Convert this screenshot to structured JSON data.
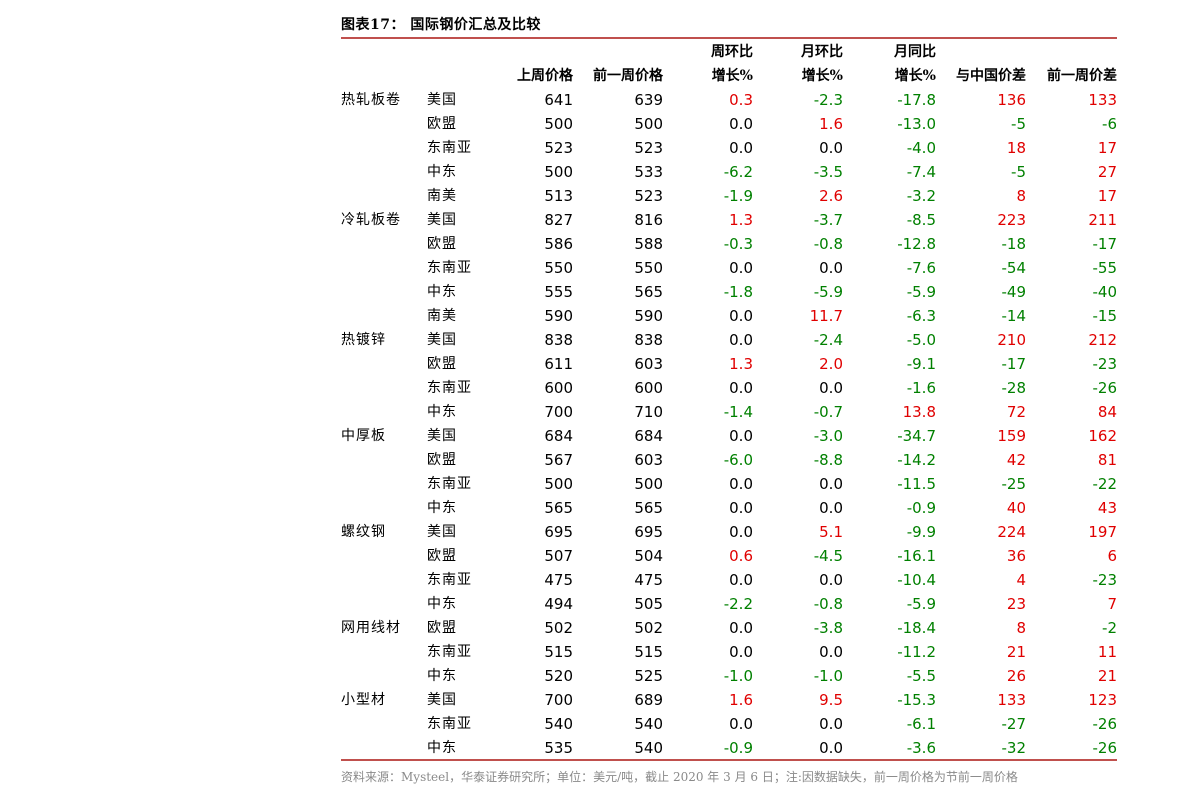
{
  "title": "图表17：  国际钢价汇总及比较",
  "columns": {
    "last_week": "上周价格",
    "prev_week": "前一周价格",
    "week_line1": "周环比",
    "week_line2": "增长%",
    "month_line1": "月环比",
    "month_line2": "增长%",
    "year_line1": "月同比",
    "year_line2": "增长%",
    "china_diff": "与中国价差",
    "prev_diff": "前一周价差"
  },
  "rows": [
    {
      "category": "热轧板卷",
      "region": "美国",
      "last": "641",
      "prev": "639",
      "wk": "0.3",
      "mo": "-2.3",
      "yr": "-17.8",
      "cn": "136",
      "pw": "133"
    },
    {
      "category": "",
      "region": "欧盟",
      "last": "500",
      "prev": "500",
      "wk": "0.0",
      "mo": "1.6",
      "yr": "-13.0",
      "cn": "-5",
      "pw": "-6"
    },
    {
      "category": "",
      "region": "东南亚",
      "last": "523",
      "prev": "523",
      "wk": "0.0",
      "mo": "0.0",
      "yr": "-4.0",
      "cn": "18",
      "pw": "17"
    },
    {
      "category": "",
      "region": "中东",
      "last": "500",
      "prev": "533",
      "wk": "-6.2",
      "mo": "-3.5",
      "yr": "-7.4",
      "cn": "-5",
      "pw": "27"
    },
    {
      "category": "",
      "region": "南美",
      "last": "513",
      "prev": "523",
      "wk": "-1.9",
      "mo": "2.6",
      "yr": "-3.2",
      "cn": "8",
      "pw": "17"
    },
    {
      "category": "冷轧板卷",
      "region": "美国",
      "last": "827",
      "prev": "816",
      "wk": "1.3",
      "mo": "-3.7",
      "yr": "-8.5",
      "cn": "223",
      "pw": "211"
    },
    {
      "category": "",
      "region": "欧盟",
      "last": "586",
      "prev": "588",
      "wk": "-0.3",
      "mo": "-0.8",
      "yr": "-12.8",
      "cn": "-18",
      "pw": "-17"
    },
    {
      "category": "",
      "region": "东南亚",
      "last": "550",
      "prev": "550",
      "wk": "0.0",
      "mo": "0.0",
      "yr": "-7.6",
      "cn": "-54",
      "pw": "-55"
    },
    {
      "category": "",
      "region": "中东",
      "last": "555",
      "prev": "565",
      "wk": "-1.8",
      "mo": "-5.9",
      "yr": "-5.9",
      "cn": "-49",
      "pw": "-40"
    },
    {
      "category": "",
      "region": "南美",
      "last": "590",
      "prev": "590",
      "wk": "0.0",
      "mo": "11.7",
      "yr": "-6.3",
      "cn": "-14",
      "pw": "-15"
    },
    {
      "category": "热镀锌",
      "region": "美国",
      "last": "838",
      "prev": "838",
      "wk": "0.0",
      "mo": "-2.4",
      "yr": "-5.0",
      "cn": "210",
      "pw": "212"
    },
    {
      "category": "",
      "region": "欧盟",
      "last": "611",
      "prev": "603",
      "wk": "1.3",
      "mo": "2.0",
      "yr": "-9.1",
      "cn": "-17",
      "pw": "-23"
    },
    {
      "category": "",
      "region": "东南亚",
      "last": "600",
      "prev": "600",
      "wk": "0.0",
      "mo": "0.0",
      "yr": "-1.6",
      "cn": "-28",
      "pw": "-26"
    },
    {
      "category": "",
      "region": "中东",
      "last": "700",
      "prev": "710",
      "wk": "-1.4",
      "mo": "-0.7",
      "yr": "13.8",
      "cn": "72",
      "pw": "84"
    },
    {
      "category": "中厚板",
      "region": "美国",
      "last": "684",
      "prev": "684",
      "wk": "0.0",
      "mo": "-3.0",
      "yr": "-34.7",
      "cn": "159",
      "pw": "162"
    },
    {
      "category": "",
      "region": "欧盟",
      "last": "567",
      "prev": "603",
      "wk": "-6.0",
      "mo": "-8.8",
      "yr": "-14.2",
      "cn": "42",
      "pw": "81"
    },
    {
      "category": "",
      "region": "东南亚",
      "last": "500",
      "prev": "500",
      "wk": "0.0",
      "mo": "0.0",
      "yr": "-11.5",
      "cn": "-25",
      "pw": "-22"
    },
    {
      "category": "",
      "region": "中东",
      "last": "565",
      "prev": "565",
      "wk": "0.0",
      "mo": "0.0",
      "yr": "-0.9",
      "cn": "40",
      "pw": "43"
    },
    {
      "category": "螺纹钢",
      "region": "美国",
      "last": "695",
      "prev": "695",
      "wk": "0.0",
      "mo": "5.1",
      "yr": "-9.9",
      "cn": "224",
      "pw": "197"
    },
    {
      "category": "",
      "region": "欧盟",
      "last": "507",
      "prev": "504",
      "wk": "0.6",
      "mo": "-4.5",
      "yr": "-16.1",
      "cn": "36",
      "pw": "6"
    },
    {
      "category": "",
      "region": "东南亚",
      "last": "475",
      "prev": "475",
      "wk": "0.0",
      "mo": "0.0",
      "yr": "-10.4",
      "cn": "4",
      "pw": "-23"
    },
    {
      "category": "",
      "region": "中东",
      "last": "494",
      "prev": "505",
      "wk": "-2.2",
      "mo": "-0.8",
      "yr": "-5.9",
      "cn": "23",
      "pw": "7"
    },
    {
      "category": "网用线材",
      "region": "欧盟",
      "last": "502",
      "prev": "502",
      "wk": "0.0",
      "mo": "-3.8",
      "yr": "-18.4",
      "cn": "8",
      "pw": "-2"
    },
    {
      "category": "",
      "region": "东南亚",
      "last": "515",
      "prev": "515",
      "wk": "0.0",
      "mo": "0.0",
      "yr": "-11.2",
      "cn": "21",
      "pw": "11"
    },
    {
      "category": "",
      "region": "中东",
      "last": "520",
      "prev": "525",
      "wk": "-1.0",
      "mo": "-1.0",
      "yr": "-5.5",
      "cn": "26",
      "pw": "21"
    },
    {
      "category": "小型材",
      "region": "美国",
      "last": "700",
      "prev": "689",
      "wk": "1.6",
      "mo": "9.5",
      "yr": "-15.3",
      "cn": "133",
      "pw": "123"
    },
    {
      "category": "",
      "region": "东南亚",
      "last": "540",
      "prev": "540",
      "wk": "0.0",
      "mo": "0.0",
      "yr": "-6.1",
      "cn": "-27",
      "pw": "-26"
    },
    {
      "category": "",
      "region": "中东",
      "last": "535",
      "prev": "540",
      "wk": "-0.9",
      "mo": "0.0",
      "yr": "-3.6",
      "cn": "-32",
      "pw": "-26"
    }
  ],
  "colors": {
    "positive": "#e00000",
    "negative": "#008000",
    "rule": "#c0504d"
  },
  "source": "资料来源：Mysteel，华泰证券研究所；单位：美元/吨，截止 2020 年 3 月 6 日；注:因数据缺失，前一周价格为节前一周价格"
}
